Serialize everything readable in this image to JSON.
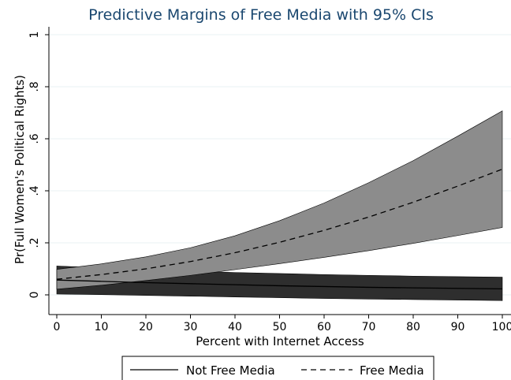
{
  "chart_data": {
    "type": "line",
    "title": "Predictive Margins of Free Media with 95% CIs",
    "xlabel": "Percent with Internet Access",
    "ylabel": "Pr(Full Women's Political Rights)",
    "xlim": [
      0,
      100
    ],
    "ylim": [
      0,
      1
    ],
    "x_ticks": [
      "0",
      "10",
      "20",
      "30",
      "40",
      "50",
      "60",
      "70",
      "80",
      "90",
      "100"
    ],
    "y_ticks": [
      "0",
      ".2",
      ".4",
      ".6",
      ".8",
      "1"
    ],
    "y_tick_values": [
      0,
      0.2,
      0.4,
      0.6,
      0.8,
      1
    ],
    "grid": true,
    "legend_position": "bottom",
    "x": [
      0,
      10,
      20,
      30,
      40,
      50,
      60,
      70,
      80,
      90,
      100
    ],
    "series": [
      {
        "name": "Not Free Media",
        "style": "solid",
        "ci_color": "#2e2e2e",
        "values": [
          0.057,
          0.052,
          0.047,
          0.043,
          0.039,
          0.035,
          0.032,
          0.029,
          0.027,
          0.025,
          0.023
        ],
        "ci_lower": [
          0.003,
          0.001,
          -0.002,
          -0.005,
          -0.008,
          -0.011,
          -0.014,
          -0.016,
          -0.018,
          -0.02,
          -0.022
        ],
        "ci_upper": [
          0.111,
          0.104,
          0.097,
          0.091,
          0.086,
          0.082,
          0.078,
          0.075,
          0.072,
          0.07,
          0.068
        ]
      },
      {
        "name": "Free Media",
        "style": "dashed",
        "ci_color": "#8c8c8c",
        "values": [
          0.06,
          0.078,
          0.1,
          0.128,
          0.162,
          0.202,
          0.248,
          0.299,
          0.356,
          0.418,
          0.483
        ],
        "ci_lower": [
          0.022,
          0.037,
          0.055,
          0.075,
          0.097,
          0.12,
          0.144,
          0.17,
          0.198,
          0.228,
          0.259
        ],
        "ci_upper": [
          0.098,
          0.119,
          0.146,
          0.181,
          0.227,
          0.285,
          0.353,
          0.431,
          0.516,
          0.61,
          0.707
        ]
      }
    ]
  }
}
